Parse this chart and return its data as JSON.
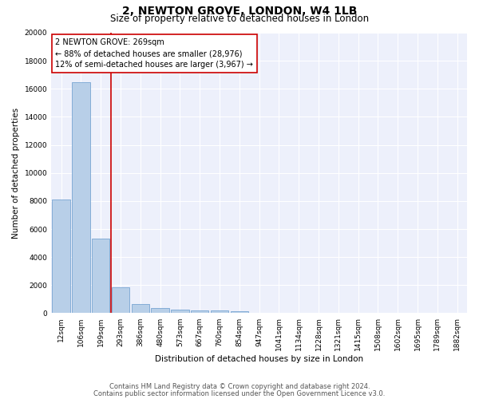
{
  "title": "2, NEWTON GROVE, LONDON, W4 1LB",
  "subtitle": "Size of property relative to detached houses in London",
  "xlabel": "Distribution of detached houses by size in London",
  "ylabel": "Number of detached properties",
  "categories": [
    "12sqm",
    "106sqm",
    "199sqm",
    "293sqm",
    "386sqm",
    "480sqm",
    "573sqm",
    "667sqm",
    "760sqm",
    "854sqm",
    "947sqm",
    "1041sqm",
    "1134sqm",
    "1228sqm",
    "1321sqm",
    "1415sqm",
    "1508sqm",
    "1602sqm",
    "1695sqm",
    "1789sqm",
    "1882sqm"
  ],
  "values": [
    8100,
    16500,
    5300,
    1850,
    650,
    350,
    275,
    220,
    180,
    155,
    0,
    0,
    0,
    0,
    0,
    0,
    0,
    0,
    0,
    0,
    0
  ],
  "bar_color": "#b8cfe8",
  "bar_edge_color": "#6699cc",
  "vline_color": "#cc0000",
  "annotation_text": "2 NEWTON GROVE: 269sqm\n← 88% of detached houses are smaller (28,976)\n12% of semi-detached houses are larger (3,967) →",
  "annotation_box_color": "#ffffff",
  "annotation_box_edge": "#cc0000",
  "ylim": [
    0,
    20000
  ],
  "yticks": [
    0,
    2000,
    4000,
    6000,
    8000,
    10000,
    12000,
    14000,
    16000,
    18000,
    20000
  ],
  "footer1": "Contains HM Land Registry data © Crown copyright and database right 2024.",
  "footer2": "Contains public sector information licensed under the Open Government Licence v3.0.",
  "bg_color": "#edf0fb",
  "grid_color": "#ffffff",
  "fig_bg_color": "#ffffff",
  "title_fontsize": 10,
  "subtitle_fontsize": 8.5,
  "axis_label_fontsize": 7.5,
  "tick_fontsize": 6.5,
  "annotation_fontsize": 7,
  "footer_fontsize": 6
}
